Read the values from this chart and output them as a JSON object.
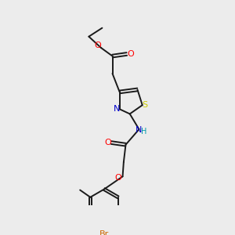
{
  "bg_color": "#ececec",
  "line_color": "#1a1a1a",
  "colors": {
    "O": "#ff0000",
    "N": "#0000cc",
    "S": "#cccc00",
    "Br": "#cc6600",
    "NH": "#0099aa"
  },
  "fig_w": 3.0,
  "fig_h": 3.0,
  "dpi": 100
}
